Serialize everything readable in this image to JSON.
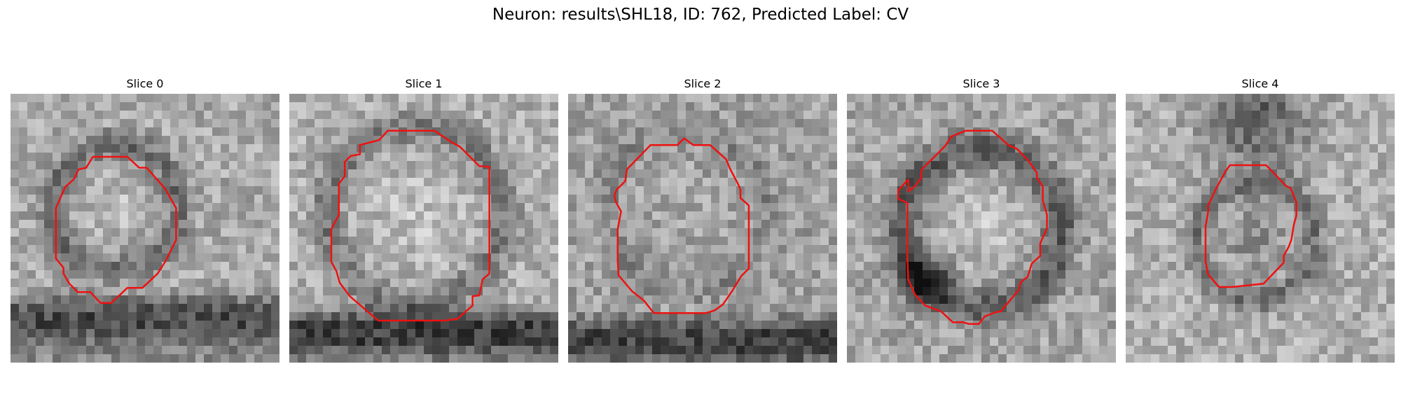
{
  "title": "Neuron: results\\SHL18, ID: 762, Predicted Label: CV",
  "colors": {
    "contour": "#ee1111",
    "background": "#ffffff"
  },
  "slices": [
    {
      "label": "Slice 0"
    },
    {
      "label": "Slice 1"
    },
    {
      "label": "Slice 2"
    },
    {
      "label": "Slice 3"
    },
    {
      "label": "Slice 4"
    }
  ]
}
